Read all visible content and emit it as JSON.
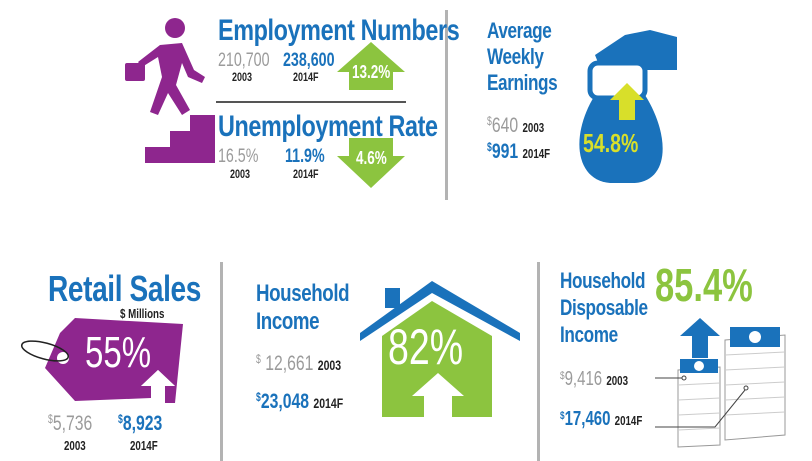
{
  "employment": {
    "title": "Employment Numbers",
    "v2003": "210,700",
    "y2003": "2003",
    "v2014": "238,600",
    "y2014": "2014F",
    "change": "13.2%"
  },
  "unemployment": {
    "title": "Unemployment Rate",
    "v2003": "16.5%",
    "y2003": "2003",
    "v2014": "11.9%",
    "y2014": "2014F",
    "change": "4.6%"
  },
  "earnings": {
    "title1": "Average",
    "title2": "Weekly",
    "title3": "Earnings",
    "cur": "$",
    "v2003": "640",
    "y2003": "2003",
    "v2014": "991",
    "y2014": "2014F",
    "change": "54.8%"
  },
  "retail": {
    "title": "Retail Sales",
    "unit": "$ Millions",
    "change": "55%",
    "cur": "$",
    "v2003": "5,736",
    "y2003": "2003",
    "v2014": "8,923",
    "y2014": "2014F"
  },
  "household": {
    "title1": "Household",
    "title2": "Income",
    "cur": "$",
    "v2003": "12,661",
    "y2003": "2003",
    "v2014": "23,048",
    "y2014": "2014F",
    "change": "82%"
  },
  "disposable": {
    "title1": "Household",
    "title2": "Disposable",
    "title3": "Income",
    "change": "85.4%",
    "cur": "$",
    "v2003": "9,416",
    "y2003": "2003",
    "v2014": "17,460",
    "y2014": "2014F"
  },
  "colors": {
    "blue": "#1a72bb",
    "purple": "#8e268e",
    "green": "#8cc43f",
    "gray": "#9b9b9b"
  }
}
